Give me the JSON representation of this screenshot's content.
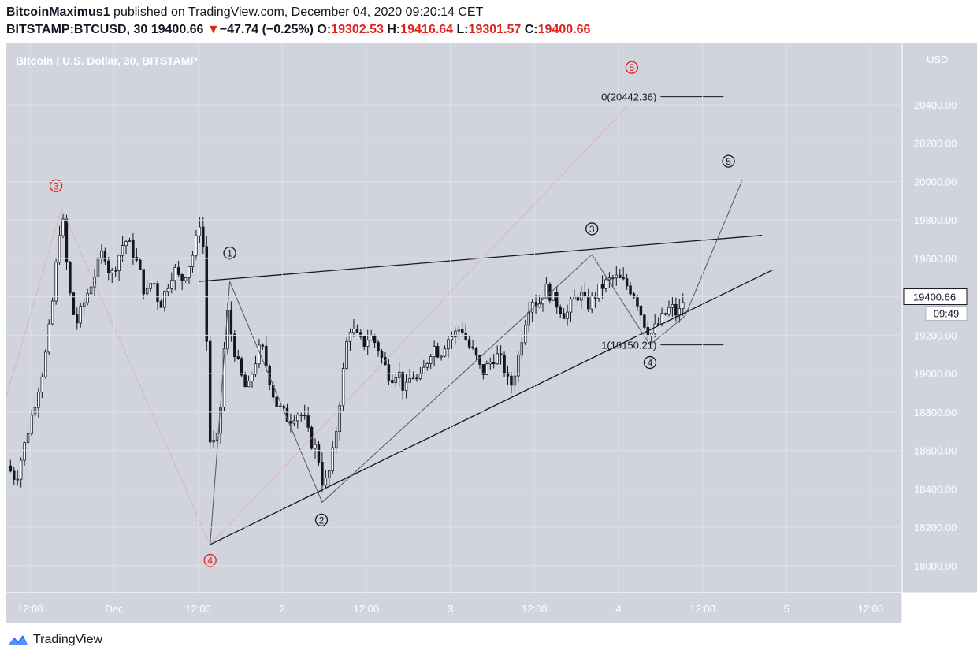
{
  "header": {
    "author": "BitcoinMaximus1",
    "published": "published on TradingView.com, December 04, 2020 09:20:14 CET",
    "symbol": "BITSTAMP:BTCUSD, 30",
    "last": "19400.66",
    "change_arrow": "▼",
    "change": "−47.74 (−0.25%)",
    "o_label": "O:",
    "o_value": "19302.53",
    "h_label": "H:",
    "h_value": "19416.64",
    "l_label": "L:",
    "l_value": "19301.57",
    "c_label": "C:",
    "c_value": "19400.66"
  },
  "footer": {
    "brand": "TradingView",
    "logo_icon": "tradingview-logo-icon"
  },
  "colors": {
    "background": "#d1d4dc",
    "candle": "#131722",
    "accent_red": "#e0221b",
    "line": "#131722"
  },
  "chart_data": {
    "type": "candlestick",
    "title": "Bitcoin / U.S. Dollar, 30, BITSTAMP",
    "currency_label": "USD",
    "ylim": [
      17860,
      20720
    ],
    "y_ticks": [
      18000,
      18200,
      18400,
      18600,
      18800,
      19000,
      19200,
      19400,
      19600,
      19800,
      20000,
      20200,
      20400
    ],
    "x_ticks": [
      {
        "label": "12:00",
        "t": 0
      },
      {
        "label": "Dec",
        "t": 12
      },
      {
        "label": "12:00",
        "t": 24
      },
      {
        "label": "2",
        "t": 36
      },
      {
        "label": "12:00",
        "t": 48
      },
      {
        "label": "3",
        "t": 60
      },
      {
        "label": "12:00",
        "t": 72
      },
      {
        "label": "4",
        "t": 84
      },
      {
        "label": "12:00",
        "t": 96
      },
      {
        "label": "5",
        "t": 108
      },
      {
        "label": "12:00",
        "t": 120
      }
    ],
    "t_range": [
      -3.4,
      124.5
    ],
    "last_price_label": "19400.66",
    "countdown_label": "09:49",
    "waypoints": [
      [
        -3.3,
        18520
      ],
      [
        -2,
        18450
      ],
      [
        -1,
        18600
      ],
      [
        0,
        18750
      ],
      [
        1,
        18900
      ],
      [
        2,
        19050
      ],
      [
        3,
        19300
      ],
      [
        4.5,
        19860
      ],
      [
        5.5,
        19450
      ],
      [
        6.5,
        19250
      ],
      [
        7.5,
        19350
      ],
      [
        8.5,
        19450
      ],
      [
        9.5,
        19550
      ],
      [
        10.5,
        19650
      ],
      [
        11.5,
        19500
      ],
      [
        12.5,
        19600
      ],
      [
        13.5,
        19700
      ],
      [
        14.5,
        19650
      ],
      [
        15.5,
        19550
      ],
      [
        16.5,
        19400
      ],
      [
        17.5,
        19500
      ],
      [
        18.5,
        19350
      ],
      [
        19.5,
        19450
      ],
      [
        20.5,
        19550
      ],
      [
        21.5,
        19480
      ],
      [
        22.5,
        19550
      ],
      [
        23.5,
        19650
      ],
      [
        24.5,
        19850
      ],
      [
        25,
        19380
      ],
      [
        25.7,
        18650
      ],
      [
        26.6,
        18620
      ],
      [
        27.4,
        18900
      ],
      [
        28,
        19350
      ],
      [
        29,
        19150
      ],
      [
        30,
        19000
      ],
      [
        31,
        18900
      ],
      [
        32,
        19050
      ],
      [
        33,
        19150
      ],
      [
        34,
        19000
      ],
      [
        35,
        18850
      ],
      [
        36,
        18800
      ],
      [
        37,
        18760
      ],
      [
        38,
        18800
      ],
      [
        39,
        18780
      ],
      [
        40,
        18650
      ],
      [
        41,
        18600
      ],
      [
        41.8,
        18420
      ],
      [
        42.5,
        18450
      ],
      [
        43.4,
        18620
      ],
      [
        44.5,
        18950
      ],
      [
        45.5,
        19250
      ],
      [
        46.5,
        19200
      ],
      [
        47.5,
        19150
      ],
      [
        48.5,
        19200
      ],
      [
        49.5,
        19150
      ],
      [
        50.5,
        19050
      ],
      [
        51.5,
        18980
      ],
      [
        52.5,
        19020
      ],
      [
        53.5,
        18900
      ],
      [
        54.5,
        19000
      ],
      [
        55.5,
        18950
      ],
      [
        56.5,
        19050
      ],
      [
        57.5,
        19150
      ],
      [
        58.5,
        19100
      ],
      [
        59.5,
        19180
      ],
      [
        60.5,
        19200
      ],
      [
        61.5,
        19250
      ],
      [
        62.5,
        19150
      ],
      [
        63.5,
        19100
      ],
      [
        64.5,
        19000
      ],
      [
        65.5,
        19050
      ],
      [
        66.5,
        19100
      ],
      [
        67.5,
        19050
      ],
      [
        68.5,
        18920
      ],
      [
        69.5,
        19050
      ],
      [
        70.5,
        19250
      ],
      [
        71.5,
        19400
      ],
      [
        72.5,
        19350
      ],
      [
        73.5,
        19450
      ],
      [
        74.5,
        19400
      ],
      [
        75.5,
        19350
      ],
      [
        76.5,
        19300
      ],
      [
        77.5,
        19380
      ],
      [
        78.5,
        19420
      ],
      [
        79.5,
        19350
      ],
      [
        80.5,
        19400
      ],
      [
        81.5,
        19450
      ],
      [
        82.5,
        19480
      ],
      [
        83.5,
        19500
      ],
      [
        84.5,
        19480
      ],
      [
        85.5,
        19450
      ],
      [
        86.5,
        19400
      ],
      [
        87.5,
        19280
      ],
      [
        88.5,
        19200
      ],
      [
        89.5,
        19250
      ],
      [
        90.5,
        19300
      ],
      [
        91.5,
        19350
      ],
      [
        92.5,
        19300
      ],
      [
        93.4,
        19400
      ]
    ],
    "drawings": {
      "upper_line": [
        [
          24,
          19480
        ],
        [
          104.5,
          19720
        ]
      ],
      "lower_line": [
        [
          25.7,
          18110
        ],
        [
          106,
          19540
        ]
      ],
      "black_wave": [
        [
          25.7,
          18110
        ],
        [
          28.5,
          19480
        ],
        [
          41.7,
          18330
        ],
        [
          80.2,
          19620
        ],
        [
          88.5,
          19150
        ],
        [
          93.5,
          19300
        ],
        [
          101.7,
          20010
        ]
      ],
      "red_wave_faint": [
        [
          -3.4,
          18880
        ],
        [
          4.5,
          19860
        ],
        [
          25.7,
          18110
        ],
        [
          86,
          20420
        ]
      ],
      "fib_top": {
        "label": "0(20442.36)",
        "value": 20442.36,
        "t1": 90,
        "t2": 99
      },
      "fib_bottom": {
        "label": "1(19150.21)",
        "value": 19150.21,
        "t1": 90,
        "t2": 99
      },
      "black_labels": [
        {
          "text": "1",
          "t": 28.5,
          "v": 19628
        },
        {
          "text": "2",
          "t": 41.6,
          "v": 18238
        },
        {
          "text": "3",
          "t": 80.2,
          "v": 19754
        },
        {
          "text": "4",
          "t": 88.5,
          "v": 19058
        },
        {
          "text": "5",
          "t": 99.7,
          "v": 20106
        }
      ],
      "red_labels": [
        {
          "text": "3",
          "t": 3.7,
          "v": 19978
        },
        {
          "text": "4",
          "t": 25.7,
          "v": 18028
        },
        {
          "text": "5",
          "t": 85.9,
          "v": 20594
        }
      ]
    }
  }
}
